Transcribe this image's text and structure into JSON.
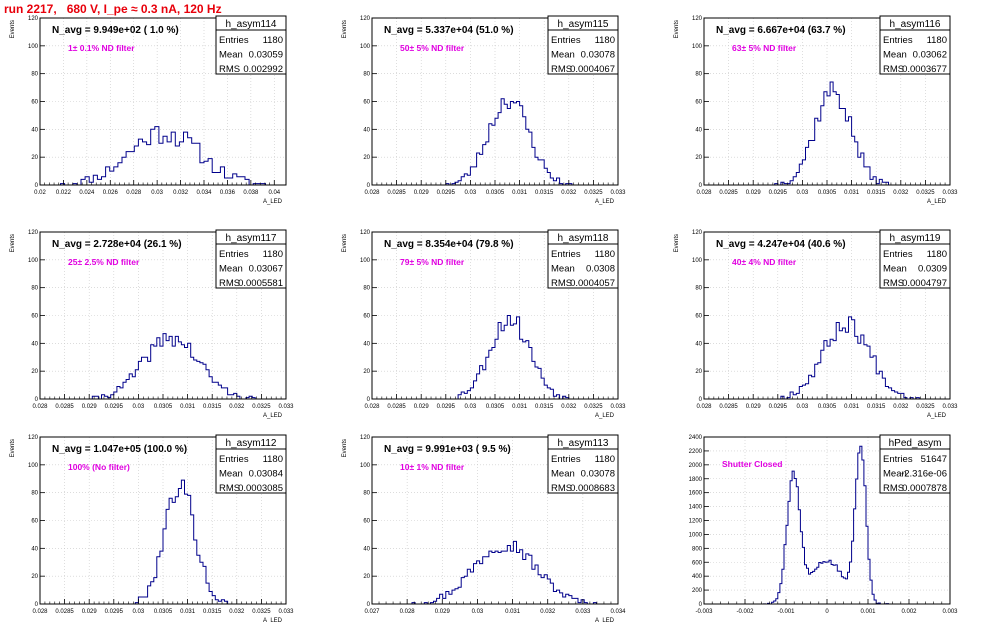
{
  "page": {
    "title": "run 2217,   680 V, I_pe ≈ 0.3 nA, 120 Hz"
  },
  "colors": {
    "hist": "#00008b",
    "filter_label": "#e000e0",
    "title": "#e8000b",
    "axis": "#000000",
    "grid": "#c8c8c8"
  },
  "chart_data": [
    {
      "type": "histogram",
      "stats_name": "h_asym114",
      "stats": {
        "entries": "1180",
        "mean": "0.03059",
        "rms": "0.002992"
      },
      "navg_label": "N_avg = 9.949e+02 ( 1.0 %)",
      "filter_label": "1± 0.1% ND filter",
      "ylabel": "Events",
      "xlabel": "A_LED",
      "xlim": [
        0.02,
        0.041
      ],
      "ylim": [
        0,
        120
      ],
      "xticks": [
        "0.02",
        "0.022",
        "0.024",
        "0.026",
        "0.028",
        "0.03",
        "0.032",
        "0.034",
        "0.036",
        "0.038",
        "0.04"
      ],
      "yticks": [
        "0",
        "20",
        "40",
        "60",
        "80",
        "100",
        "120"
      ],
      "mean": 0.03059,
      "sigma": 0.003,
      "peak": 38,
      "bins": 60,
      "noise": 8,
      "seed": 11
    },
    {
      "type": "histogram",
      "stats_name": "h_asym115",
      "stats": {
        "entries": "1180",
        "mean": "0.03078",
        "rms": "0.0004067"
      },
      "navg_label": "N_avg = 5.337e+04 (51.0 %)",
      "filter_label": "50± 5% ND filter",
      "ylabel": "Events",
      "xlabel": "A_LED",
      "xlim": [
        0.028,
        0.033
      ],
      "ylim": [
        0,
        120
      ],
      "xticks": [
        "0.028",
        "0.0285",
        "0.029",
        "0.0295",
        "0.03",
        "0.0305",
        "0.031",
        "0.0315",
        "0.032",
        "0.0325",
        "0.033"
      ],
      "yticks": [
        "0",
        "20",
        "40",
        "60",
        "80",
        "100",
        "120"
      ],
      "mean": 0.03078,
      "sigma": 0.00041,
      "peak": 62,
      "bins": 80,
      "noise": 7,
      "seed": 23
    },
    {
      "type": "histogram",
      "stats_name": "h_asym116",
      "stats": {
        "entries": "1180",
        "mean": "0.03062",
        "rms": "0.0003677"
      },
      "navg_label": "N_avg = 6.667e+04 (63.7 %)",
      "filter_label": "63± 5% ND filter",
      "ylabel": "Events",
      "xlabel": "A_LED",
      "xlim": [
        0.028,
        0.033
      ],
      "ylim": [
        0,
        120
      ],
      "xticks": [
        "0.028",
        "0.0285",
        "0.029",
        "0.0295",
        "0.03",
        "0.0305",
        "0.031",
        "0.0315",
        "0.032",
        "0.0325",
        "0.033"
      ],
      "yticks": [
        "0",
        "20",
        "40",
        "60",
        "80",
        "100",
        "120"
      ],
      "mean": 0.03062,
      "sigma": 0.00037,
      "peak": 68,
      "bins": 80,
      "noise": 8,
      "seed": 37
    },
    {
      "type": "histogram",
      "stats_name": "h_asym117",
      "stats": {
        "entries": "1180",
        "mean": "0.03067",
        "rms": "0.0005581"
      },
      "navg_label": "N_avg = 2.728e+04 (26.1 %)",
      "filter_label": "25± 2.5% ND filter",
      "ylabel": "Events",
      "xlabel": "A_LED",
      "xlim": [
        0.028,
        0.033
      ],
      "ylim": [
        0,
        120
      ],
      "xticks": [
        "0.028",
        "0.0285",
        "0.029",
        "0.0295",
        "0.03",
        "0.0305",
        "0.031",
        "0.0315",
        "0.032",
        "0.0325",
        "0.033"
      ],
      "yticks": [
        "0",
        "20",
        "40",
        "60",
        "80",
        "100",
        "120"
      ],
      "mean": 0.03067,
      "sigma": 0.00056,
      "peak": 44,
      "bins": 80,
      "noise": 6,
      "seed": 41
    },
    {
      "type": "histogram",
      "stats_name": "h_asym118",
      "stats": {
        "entries": "1180",
        "mean": "0.0308",
        "rms": "0.0004057"
      },
      "navg_label": "N_avg = 8.354e+04 (79.8 %)",
      "filter_label": "79± 5% ND filter",
      "ylabel": "Events",
      "xlabel": "A_LED",
      "xlim": [
        0.028,
        0.033
      ],
      "ylim": [
        0,
        120
      ],
      "xticks": [
        "0.028",
        "0.0285",
        "0.029",
        "0.0295",
        "0.03",
        "0.0305",
        "0.031",
        "0.0315",
        "0.032",
        "0.0325",
        "0.033"
      ],
      "yticks": [
        "0",
        "20",
        "40",
        "60",
        "80",
        "100",
        "120"
      ],
      "mean": 0.0308,
      "sigma": 0.00041,
      "peak": 58,
      "bins": 80,
      "noise": 7,
      "seed": 53
    },
    {
      "type": "histogram",
      "stats_name": "h_asym119",
      "stats": {
        "entries": "1180",
        "mean": "0.0309",
        "rms": "0.0004797"
      },
      "navg_label": "N_avg = 4.247e+04 (40.6 %)",
      "filter_label": "40± 4% ND filter",
      "ylabel": "Events",
      "xlabel": "A_LED",
      "xlim": [
        0.028,
        0.033
      ],
      "ylim": [
        0,
        120
      ],
      "xticks": [
        "0.028",
        "0.0285",
        "0.029",
        "0.0295",
        "0.03",
        "0.0305",
        "0.031",
        "0.0315",
        "0.032",
        "0.0325",
        "0.033"
      ],
      "yticks": [
        "0",
        "20",
        "40",
        "60",
        "80",
        "100",
        "120"
      ],
      "mean": 0.0309,
      "sigma": 0.00048,
      "peak": 54,
      "bins": 80,
      "noise": 7,
      "seed": 67
    },
    {
      "type": "histogram",
      "stats_name": "h_asym112",
      "stats": {
        "entries": "1180",
        "mean": "0.03084",
        "rms": "0.0003085"
      },
      "navg_label": "N_avg = 1.047e+05 (100.0 %)",
      "filter_label": "100% (No filter)",
      "ylabel": "Events",
      "xlabel": "A_LED",
      "xlim": [
        0.028,
        0.033
      ],
      "ylim": [
        0,
        120
      ],
      "xticks": [
        "0.028",
        "0.0285",
        "0.029",
        "0.0295",
        "0.03",
        "0.0305",
        "0.031",
        "0.0315",
        "0.032",
        "0.0325",
        "0.033"
      ],
      "yticks": [
        "0",
        "20",
        "40",
        "60",
        "80",
        "100",
        "120"
      ],
      "mean": 0.03084,
      "sigma": 0.00031,
      "peak": 86,
      "bins": 80,
      "noise": 8,
      "seed": 79
    },
    {
      "type": "histogram",
      "stats_name": "h_asym113",
      "stats": {
        "entries": "1180",
        "mean": "0.03078",
        "rms": "0.0008683"
      },
      "navg_label": "N_avg = 9.991e+03 ( 9.5 %)",
      "filter_label": "10± 1% ND filter",
      "ylabel": "Events",
      "xlabel": "A_LED",
      "xlim": [
        0.027,
        0.034
      ],
      "ylim": [
        0,
        120
      ],
      "xticks": [
        "0.027",
        "0.028",
        "0.029",
        "0.03",
        "0.031",
        "0.032",
        "0.033",
        "0.034"
      ],
      "yticks": [
        "0",
        "20",
        "40",
        "60",
        "80",
        "100",
        "120"
      ],
      "mean": 0.03078,
      "sigma": 0.00087,
      "peak": 44,
      "bins": 80,
      "noise": 6,
      "seed": 97
    },
    {
      "type": "histogram",
      "stats_name": "hPed_asym",
      "stats": {
        "entries": "51647",
        "mean": "-2.316e-06",
        "rms": "0.0007878"
      },
      "navg_label": "",
      "filter_label": "Shutter Closed",
      "ylabel": "",
      "xlabel": "",
      "xlim": [
        -0.003,
        0.003
      ],
      "ylim": [
        0,
        2400
      ],
      "xticks": [
        "-0.003",
        "-0.002",
        "-0.001",
        "0",
        "0.001",
        "0.002",
        "0.003"
      ],
      "yticks": [
        "0",
        "200",
        "400",
        "600",
        "800",
        "1000",
        "1200",
        "1400",
        "1600",
        "1800",
        "2000",
        "2200",
        "2400"
      ],
      "peaks": [
        {
          "mean": -0.00082,
          "sigma": 0.00016,
          "amp": 1820
        },
        {
          "mean": 0.00082,
          "sigma": 0.00013,
          "amp": 2250
        },
        {
          "mean": 0.0,
          "sigma": 0.0004,
          "amp": 620
        }
      ],
      "bins": 120,
      "noise": 60,
      "seed": 5
    }
  ]
}
